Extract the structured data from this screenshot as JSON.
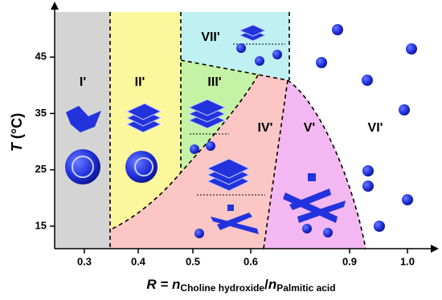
{
  "chart_data": {
    "type": "phase-diagram",
    "x_label": {
      "parts": [
        "R = ",
        "n",
        "Choline hydroxide",
        "/",
        "n",
        "Palmitic acid"
      ]
    },
    "y_label": {
      "parts": [
        "T",
        " (°C)"
      ]
    },
    "xticks": [
      0.3,
      0.4,
      0.5,
      0.6,
      0.9,
      {
        "value": 1,
        "label": "1.0"
      }
    ],
    "ylim": [
      11,
      53
    ],
    "yticks": [
      15,
      25,
      35,
      45
    ],
    "regions": [
      {
        "label": "I'",
        "color": "#d4d4d4"
      },
      {
        "label": "II'",
        "color": "#fbf79c"
      },
      {
        "label": "III'",
        "color": "#c5f3a5"
      },
      {
        "label": "IV'",
        "color": "#fbc6c4"
      },
      {
        "label": "V'",
        "color": "#f3b8f1"
      },
      {
        "label": "VI'",
        "color": "#ffffff"
      },
      {
        "label": "VII'",
        "color": "#bff0f2"
      }
    ]
  }
}
